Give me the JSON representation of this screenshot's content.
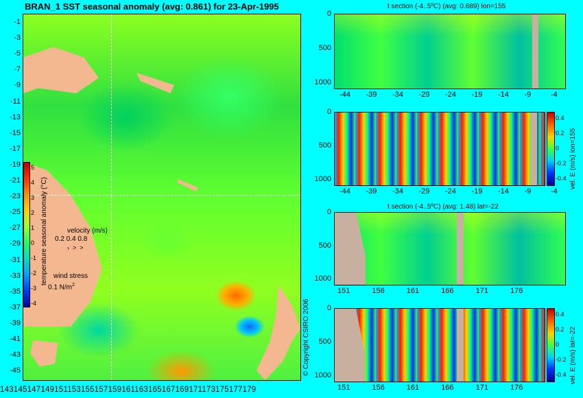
{
  "map": {
    "title": "BRAN_1  SST seasonal anomaly  (avg: 0.861)  for 23-Apr-1995",
    "y_ticks": [
      "-1",
      "-3",
      "-5",
      "-7",
      "-9",
      "-11",
      "-13",
      "-15",
      "-17",
      "-19",
      "-21",
      "-23",
      "-25",
      "-27",
      "-29",
      "-31",
      "-33",
      "-35",
      "-37",
      "-39",
      "-41",
      "-43",
      "-45"
    ],
    "x_ticks_text": "143145147149151153155157159161163165167169171173175177179",
    "colorbar_ticks": [
      "5",
      "4",
      "3",
      "2",
      "1",
      "0",
      "-1",
      "-2",
      "-3",
      "-4"
    ],
    "colorbar_label": "temperature seasonal anomaly (°C)",
    "velocity_label": "velocity (m/s)",
    "velocity_values": "0.2 0.4 0.8",
    "wind_label": "wind stress",
    "wind_value": "0.1 N/m",
    "copyright": "© Copyright CSIRO 2006",
    "colors": {
      "land": "#f4b890",
      "background": "#00ffff"
    }
  },
  "panels": [
    {
      "title": "t section (-4..5ºC)  (avg: 0.689) lon=155",
      "y_ticks": [
        "0",
        "500",
        "1000"
      ],
      "x_ticks": [
        "-44",
        "-39",
        "-34",
        "-29",
        "-24",
        "-19",
        "-14",
        "-9",
        "-4"
      ],
      "side_label": ""
    },
    {
      "title": "",
      "y_ticks": [
        "0",
        "500",
        "1000"
      ],
      "x_ticks": [
        "-44",
        "-39",
        "-34",
        "-29",
        "-24",
        "-19",
        "-14",
        "-9",
        "-4"
      ],
      "colorbar_ticks": [
        "0.4",
        "0.2",
        "0",
        "-0.2",
        "-0.4"
      ],
      "side_label": "vel. E (m/s) lon=155"
    },
    {
      "title": "t section (-4..5ºC)  (avg: 1.48) lat=-22",
      "y_ticks": [
        "0",
        "500",
        "1000"
      ],
      "x_ticks": [
        "151",
        "156",
        "161",
        "166",
        "171",
        "176"
      ],
      "side_label": ""
    },
    {
      "title": "",
      "y_ticks": [
        "0",
        "500",
        "1000"
      ],
      "x_ticks": [
        "151",
        "156",
        "161",
        "166",
        "171",
        "176"
      ],
      "colorbar_ticks": [
        "0.4",
        "0.2",
        "0",
        "-0.2",
        "-0.4"
      ],
      "side_label": "vel. E (m/s) lat=-22"
    }
  ]
}
